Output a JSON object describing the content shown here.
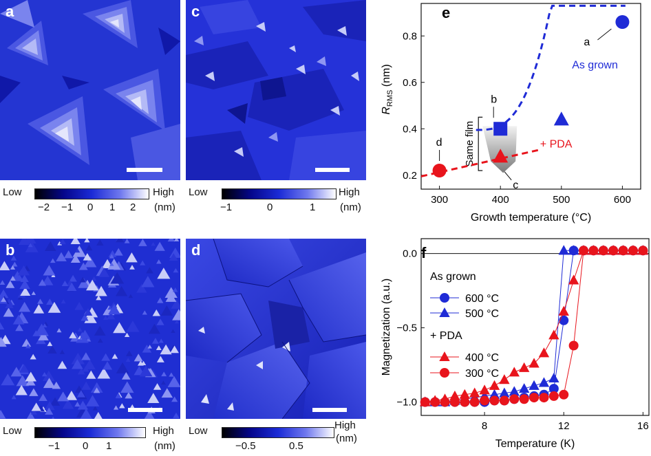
{
  "panels": {
    "a": {
      "label": "a",
      "colorbar": {
        "low": "Low",
        "high": "High",
        "unit": "(nm)",
        "ticks": [
          "−2",
          "−1",
          "0",
          "1",
          "2"
        ]
      }
    },
    "b": {
      "label": "b",
      "colorbar": {
        "low": "Low",
        "high": "High",
        "unit": "(nm)",
        "ticks": [
          "−1",
          "0",
          "1"
        ]
      }
    },
    "c": {
      "label": "c",
      "colorbar": {
        "low": "Low",
        "high": "High",
        "unit": "(nm)",
        "ticks": [
          "−1",
          "0",
          "1"
        ]
      }
    },
    "d": {
      "label": "d",
      "colorbar": {
        "low": "Low",
        "high": "High",
        "unit": "(nm)",
        "ticks": [
          "−0.5",
          "0.5"
        ]
      }
    }
  },
  "chart_data": [
    {
      "panel": "e",
      "type": "scatter",
      "xlabel": "Growth temperature (°C)",
      "ylabel_main": "R",
      "ylabel_sub": "RMS",
      "ylabel_unit": "(nm)",
      "xlim": [
        270,
        630
      ],
      "ylim": [
        0.14,
        0.94
      ],
      "xticks": [
        300,
        400,
        500,
        600
      ],
      "yticks": [
        0.2,
        0.4,
        0.6,
        0.8
      ],
      "ytick_labels": [
        "0.2",
        "0.4",
        "0.6",
        "0.8"
      ],
      "series": [
        {
          "name": "As grown",
          "color": "#1f2bd6",
          "points": [
            {
              "x": 400,
              "y": 0.4,
              "marker": "square",
              "label": "b"
            },
            {
              "x": 500,
              "y": 0.44,
              "marker": "triangle"
            },
            {
              "x": 600,
              "y": 0.86,
              "marker": "circle",
              "label": "a"
            }
          ]
        },
        {
          "name": "+ PDA",
          "color": "#e8141c",
          "points": [
            {
              "x": 300,
              "y": 0.22,
              "marker": "circle",
              "label": "d"
            },
            {
              "x": 400,
              "y": 0.28,
              "marker": "triangle",
              "label": "c"
            }
          ]
        }
      ],
      "annotations": [
        "Same film"
      ]
    },
    {
      "panel": "f",
      "type": "line",
      "xlabel": "Temperature (K)",
      "ylabel": "Magnetization (a.u.)",
      "xlim": [
        4.8,
        16.3
      ],
      "ylim": [
        -1.09,
        0.1
      ],
      "xticks": [
        8,
        12,
        16
      ],
      "yticks": [
        0.0,
        -0.5,
        -1.0
      ],
      "ytick_labels": [
        "0.0",
        "−0.5",
        "−1.0"
      ],
      "legend": {
        "group1": "As grown",
        "group2": "+ PDA"
      },
      "series": [
        {
          "name": "600 °C",
          "group": "As grown",
          "color": "#1f2bd6",
          "marker": "circle",
          "x": [
            5.0,
            5.5,
            6.0,
            6.5,
            7.0,
            7.5,
            8.0,
            8.5,
            9.0,
            9.5,
            10.0,
            10.5,
            11.0,
            11.5,
            12.0,
            12.5,
            13.0,
            13.5,
            14.0,
            14.5,
            15.0,
            15.5,
            16.0
          ],
          "y": [
            -1.0,
            -1.0,
            -1.0,
            -1.0,
            -1.0,
            -1.0,
            -1.0,
            -0.99,
            -0.99,
            -0.98,
            -0.97,
            -0.96,
            -0.95,
            -0.91,
            -0.45,
            0.02,
            0.02,
            0.02,
            0.02,
            0.02,
            0.02,
            0.02,
            0.02
          ]
        },
        {
          "name": "500 °C",
          "group": "As grown",
          "color": "#1f2bd6",
          "marker": "triangle",
          "x": [
            5.0,
            5.5,
            6.0,
            6.5,
            7.0,
            7.5,
            8.0,
            8.5,
            9.0,
            9.5,
            10.0,
            10.5,
            11.0,
            11.5,
            12.0,
            12.5,
            13.0,
            13.5,
            14.0,
            14.5,
            15.0,
            15.5,
            16.0
          ],
          "y": [
            -1.0,
            -1.0,
            -1.0,
            -0.99,
            -0.98,
            -0.97,
            -0.96,
            -0.95,
            -0.94,
            -0.93,
            -0.91,
            -0.89,
            -0.87,
            -0.84,
            0.02,
            0.02,
            0.02,
            0.02,
            0.02,
            0.02,
            0.02,
            0.02,
            0.02
          ]
        },
        {
          "name": "400 °C",
          "group": "+ PDA",
          "color": "#e8141c",
          "marker": "triangle",
          "x": [
            5.0,
            5.5,
            6.0,
            6.5,
            7.0,
            7.5,
            8.0,
            8.5,
            9.0,
            9.5,
            10.0,
            10.5,
            11.0,
            11.5,
            12.0,
            12.5,
            13.0,
            13.5,
            14.0,
            14.5,
            15.0,
            15.5,
            16.0
          ],
          "y": [
            -1.0,
            -0.99,
            -0.98,
            -0.96,
            -0.95,
            -0.94,
            -0.92,
            -0.89,
            -0.85,
            -0.8,
            -0.77,
            -0.74,
            -0.67,
            -0.55,
            -0.39,
            -0.18,
            0.02,
            0.02,
            0.02,
            0.02,
            0.02,
            0.02,
            0.02
          ]
        },
        {
          "name": "300 °C",
          "group": "+ PDA",
          "color": "#e8141c",
          "marker": "circle",
          "x": [
            5.0,
            5.5,
            6.0,
            6.5,
            7.0,
            7.5,
            8.0,
            8.5,
            9.0,
            9.5,
            10.0,
            10.5,
            11.0,
            11.5,
            12.0,
            12.5,
            13.0,
            13.5,
            14.0,
            14.5,
            15.0,
            15.5,
            16.0
          ],
          "y": [
            -1.0,
            -1.0,
            -1.0,
            -1.0,
            -1.0,
            -1.0,
            -0.99,
            -0.99,
            -0.99,
            -0.98,
            -0.98,
            -0.97,
            -0.97,
            -0.96,
            -0.95,
            -0.62,
            0.02,
            0.02,
            0.02,
            0.02,
            0.02,
            0.02,
            0.02
          ]
        }
      ]
    }
  ]
}
